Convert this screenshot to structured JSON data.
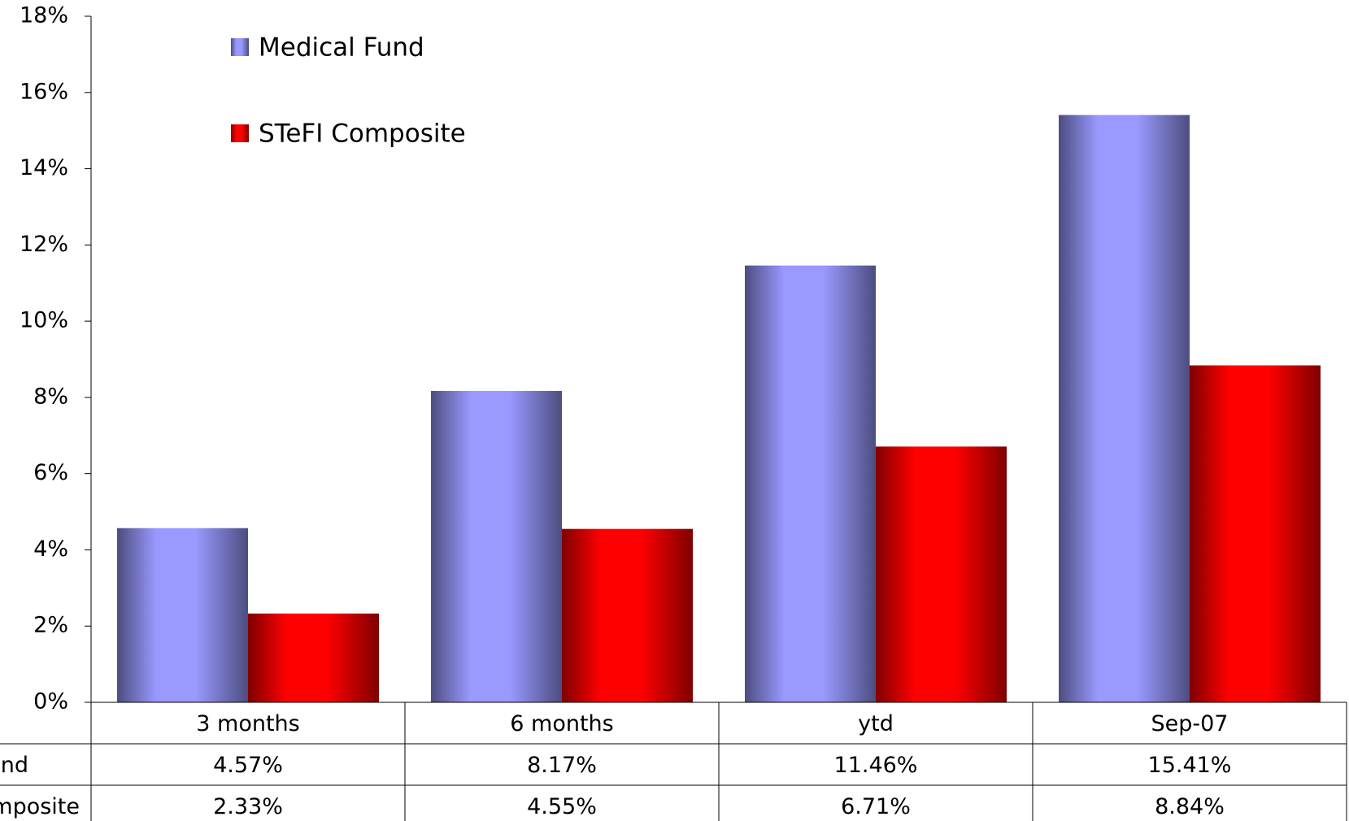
{
  "chart_data": {
    "type": "bar",
    "categories": [
      "3 months",
      "6 months",
      "ytd",
      "Sep-07"
    ],
    "series": [
      {
        "name": "Medical Fund",
        "color": "#9999ff",
        "values": [
          4.57,
          8.17,
          11.46,
          15.41
        ],
        "value_labels": [
          "4.57%",
          "8.17%",
          "11.46%",
          "15.41%"
        ]
      },
      {
        "name": "STeFI Composite",
        "color": "#ff0000",
        "values": [
          2.33,
          4.55,
          6.71,
          8.84
        ],
        "value_labels": [
          "2.33%",
          "4.55%",
          "6.71%",
          "8.84%"
        ]
      }
    ],
    "ylim": [
      0,
      18
    ],
    "yticks": [
      {
        "value": 0,
        "label": "0%"
      },
      {
        "value": 2,
        "label": "2%"
      },
      {
        "value": 4,
        "label": "4%"
      },
      {
        "value": 6,
        "label": "6%"
      },
      {
        "value": 8,
        "label": "8%"
      },
      {
        "value": 10,
        "label": "10%"
      },
      {
        "value": 12,
        "label": "12%"
      },
      {
        "value": 14,
        "label": "14%"
      },
      {
        "value": 16,
        "label": "16%"
      },
      {
        "value": 18,
        "label": "18%"
      }
    ],
    "grid": false,
    "legend": "top-left",
    "data_table": true
  }
}
